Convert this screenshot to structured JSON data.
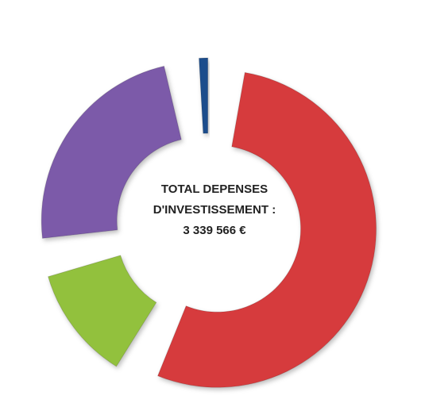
{
  "chart_data": {
    "type": "donut",
    "annotation_lines": [
      "TOTAL DEPENSES",
      "D'INVESTISSEMENT :",
      "3 339 566 €"
    ],
    "series": [
      {
        "name": null,
        "color": "#d63a3c",
        "value": 60
      },
      {
        "name": null,
        "color": "#92c13d",
        "value": 13
      },
      {
        "name": null,
        "color": "#7b5aa9",
        "value": 26
      },
      {
        "name": null,
        "color": "#1f4e8c",
        "value": 1
      }
    ],
    "legend": false
  }
}
